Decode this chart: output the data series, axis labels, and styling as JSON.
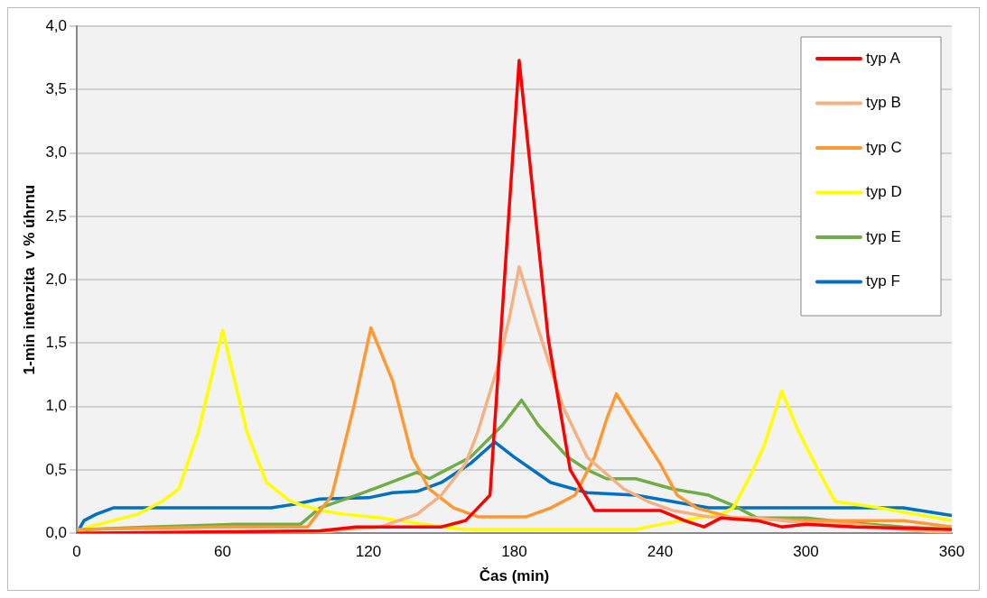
{
  "chart_data": {
    "type": "line",
    "xlabel": "Čas (min)",
    "ylabel": "1-min intenzita  v % úhrnu",
    "xlim": [
      0,
      360
    ],
    "xticks": [
      0,
      60,
      120,
      180,
      240,
      300,
      360
    ],
    "ylim": [
      0,
      4
    ],
    "yticks": [
      {
        "value": 0,
        "label": "0,0"
      },
      {
        "value": 0.5,
        "label": "0,5"
      },
      {
        "value": 1,
        "label": "1,0"
      },
      {
        "value": 1.5,
        "label": "1,5"
      },
      {
        "value": 2,
        "label": "2,0"
      },
      {
        "value": 2.5,
        "label": "2,5"
      },
      {
        "value": 3,
        "label": "3,0"
      },
      {
        "value": 3.5,
        "label": "3,5"
      },
      {
        "value": 4,
        "label": "4,0"
      }
    ],
    "grid": "y",
    "legend": "top right",
    "marker": "none",
    "line_style": "solid",
    "series": [
      {
        "name": "typ A",
        "color": "#ff0000",
        "x": [
          0,
          100,
          115,
          150,
          160,
          165,
          170,
          182,
          194,
          203,
          213,
          240,
          250,
          258,
          265,
          280,
          290,
          300,
          320,
          360
        ],
        "values": [
          0,
          0.02,
          0.05,
          0.05,
          0.1,
          0.2,
          0.3,
          3.73,
          1.53,
          0.5,
          0.18,
          0.18,
          0.1,
          0.05,
          0.12,
          0.1,
          0.05,
          0.07,
          0.05,
          0.03
        ]
      },
      {
        "name": "typ B",
        "color": "#f4b183",
        "x": [
          0,
          100,
          110,
          125,
          140,
          150,
          160,
          165,
          173,
          178,
          182,
          190,
          200,
          210,
          225,
          235,
          245,
          260,
          280,
          300,
          320,
          340,
          360
        ],
        "values": [
          0,
          0,
          0.03,
          0.05,
          0.15,
          0.3,
          0.55,
          0.8,
          1.3,
          1.7,
          2.1,
          1.6,
          1,
          0.6,
          0.35,
          0.25,
          0.18,
          0.13,
          0.12,
          0.08,
          0.07,
          0.03,
          0
        ]
      },
      {
        "name": "typ C",
        "color": "#ff9933",
        "x": [
          0,
          60,
          95,
          105,
          114,
          121,
          130,
          138,
          145,
          155,
          165,
          185,
          195,
          205,
          213,
          218,
          222,
          230,
          240,
          247,
          255,
          270,
          300,
          340,
          360
        ],
        "values": [
          0.03,
          0.05,
          0.05,
          0.3,
          1,
          1.62,
          1.2,
          0.6,
          0.35,
          0.2,
          0.13,
          0.13,
          0.2,
          0.3,
          0.6,
          0.9,
          1.1,
          0.85,
          0.55,
          0.3,
          0.2,
          0.12,
          0.1,
          0.1,
          0.05
        ]
      },
      {
        "name": "typ D",
        "color": "#ffff00",
        "x": [
          0,
          5,
          15,
          25,
          35,
          42,
          50,
          55,
          60,
          65,
          70,
          78,
          88,
          100,
          110,
          125,
          140,
          150,
          160,
          230,
          240,
          255,
          265,
          270,
          277,
          283,
          290,
          297,
          305,
          312,
          330,
          345,
          360
        ],
        "values": [
          0,
          0.05,
          0.1,
          0.15,
          0.25,
          0.35,
          0.8,
          1.2,
          1.6,
          1.2,
          0.8,
          0.4,
          0.25,
          0.18,
          0.15,
          0.12,
          0.08,
          0.05,
          0.03,
          0.03,
          0.07,
          0.12,
          0.15,
          0.2,
          0.45,
          0.7,
          1.12,
          0.8,
          0.5,
          0.25,
          0.2,
          0.15,
          0.1
        ]
      },
      {
        "name": "typ E",
        "color": "#70ad47",
        "x": [
          0,
          5,
          30,
          65,
          92,
          100,
          115,
          125,
          140,
          145,
          152,
          162,
          175,
          183,
          190,
          202,
          210,
          218,
          230,
          245,
          260,
          270,
          280,
          300,
          320,
          340,
          360
        ],
        "values": [
          0,
          0.03,
          0.05,
          0.07,
          0.07,
          0.2,
          0.3,
          0.37,
          0.48,
          0.43,
          0.5,
          0.6,
          0.85,
          1.05,
          0.85,
          0.6,
          0.5,
          0.43,
          0.43,
          0.35,
          0.3,
          0.22,
          0.12,
          0.12,
          0.08,
          0.05,
          0.03
        ]
      },
      {
        "name": "typ F",
        "color": "#0070c0",
        "x": [
          0,
          3,
          8,
          15,
          80,
          90,
          100,
          120,
          130,
          140,
          150,
          162,
          172,
          180,
          195,
          210,
          230,
          245,
          260,
          340,
          350,
          360
        ],
        "values": [
          0,
          0.1,
          0.15,
          0.2,
          0.2,
          0.23,
          0.27,
          0.28,
          0.32,
          0.33,
          0.4,
          0.55,
          0.72,
          0.6,
          0.4,
          0.32,
          0.3,
          0.25,
          0.2,
          0.2,
          0.17,
          0.14
        ]
      }
    ]
  }
}
